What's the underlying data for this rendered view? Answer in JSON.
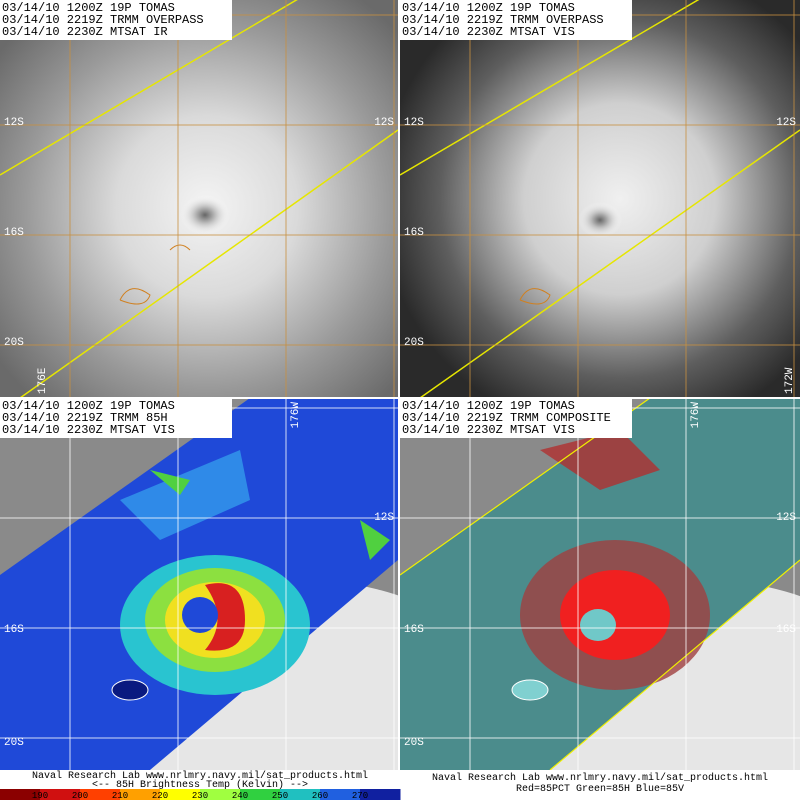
{
  "panels": [
    {
      "header": [
        "03/14/10 1200Z 19P TOMAS",
        "03/14/10 2219Z TRMM OVERPASS",
        "03/14/10 2230Z MTSAT IR"
      ],
      "lat_left": [
        "12S",
        "16S",
        "20S"
      ],
      "lat_right": [
        "12S"
      ],
      "lon": [
        "176E"
      ]
    },
    {
      "header": [
        "03/14/10 1200Z 19P TOMAS",
        "03/14/10 2219Z TRMM OVERPASS",
        "03/14/10 2230Z MTSAT VIS"
      ],
      "lat_left": [
        "12S",
        "16S",
        "20S"
      ],
      "lat_right": [
        "12S"
      ],
      "lon": [
        "172W"
      ]
    },
    {
      "header": [
        "03/14/10 1200Z 19P TOMAS",
        "03/14/10 2219Z TRMM 85H",
        "03/14/10 2230Z MTSAT VIS"
      ],
      "lat_left": [
        "16S",
        "20S"
      ],
      "lat_right": [
        "12S"
      ],
      "lon": [
        "176W"
      ]
    },
    {
      "header": [
        "03/14/10 1200Z 19P TOMAS",
        "03/14/10 2219Z TRMM COMPOSITE",
        "03/14/10 2230Z MTSAT VIS"
      ],
      "lat_left": [
        "16S",
        "20S"
      ],
      "lat_right": [
        "12S",
        "16S"
      ],
      "lon": [
        "176W"
      ]
    }
  ],
  "footer_left": {
    "line1": "Naval Research Lab  www.nrlmry.navy.mil/sat_products.html",
    "line2": "<--   85H Brightness Temp (Kelvin)   -->",
    "colorbar_ticks": [
      190,
      200,
      210,
      220,
      230,
      240,
      250,
      260,
      270
    ]
  },
  "footer_right": {
    "line1": "Naval Research Lab  www.nrlmry.navy.mil/sat_products.html",
    "line2": "Red=85PCT  Green=85H  Blue=85V"
  }
}
